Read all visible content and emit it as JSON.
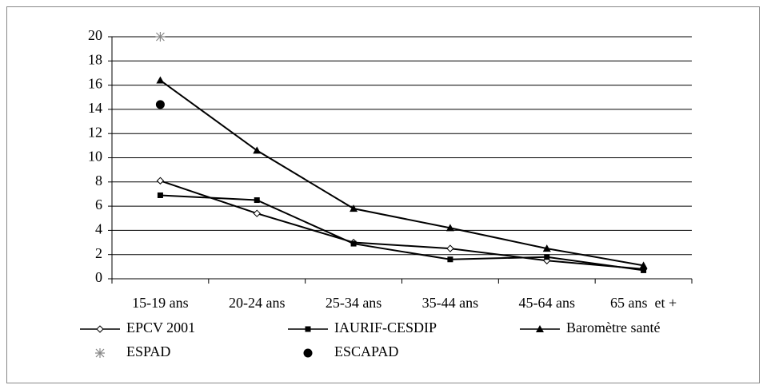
{
  "chart_data": {
    "type": "line",
    "categories": [
      "15-19 ans",
      "20-24 ans",
      "25-34 ans",
      "35-44 ans",
      "45-64 ans",
      "65 ans  et +"
    ],
    "series": [
      {
        "name": "EPCV 2001",
        "color": "#000000",
        "marker": "diamond",
        "line": true,
        "values": [
          8.1,
          5.4,
          3.0,
          2.5,
          1.5,
          0.8
        ]
      },
      {
        "name": "IAURIF-CESDIP",
        "color": "#000000",
        "marker": "square",
        "line": true,
        "values": [
          6.9,
          6.5,
          2.9,
          1.6,
          1.8,
          0.7
        ]
      },
      {
        "name": "Baromètre santé",
        "color": "#000000",
        "marker": "triangle",
        "line": true,
        "values": [
          16.4,
          10.6,
          5.8,
          4.2,
          2.5,
          1.1
        ]
      },
      {
        "name": "ESPAD",
        "color": "#888888",
        "marker": "star",
        "line": false,
        "values": [
          20,
          null,
          null,
          null,
          null,
          null
        ]
      },
      {
        "name": "ESCAPAD",
        "color": "#000000",
        "marker": "circle",
        "line": false,
        "values": [
          14.4,
          null,
          null,
          null,
          null,
          null
        ]
      }
    ],
    "ylim": [
      0,
      20
    ],
    "yticks": [
      0,
      2,
      4,
      6,
      8,
      10,
      12,
      14,
      16,
      18,
      20
    ],
    "grid": true
  }
}
